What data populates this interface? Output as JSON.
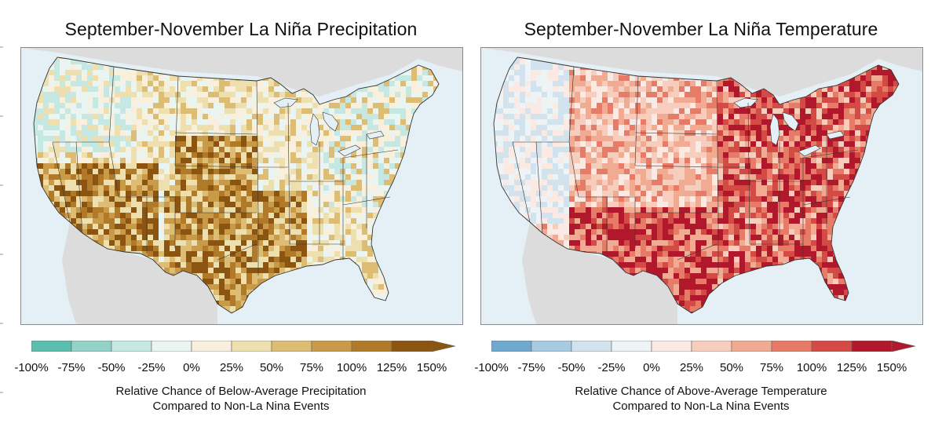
{
  "panels": [
    {
      "title": "September-November La Niña Precipitation",
      "colorbar_colors": [
        "#5cbfae",
        "#92d2c7",
        "#c6e8e2",
        "#eaf5f1",
        "#f8f0dc",
        "#eedfae",
        "#dcbd73",
        "#c99a47",
        "#b07a28",
        "#8b5511"
      ],
      "ticks": [
        "-100%",
        "-75%",
        "-50%",
        "-25%",
        "0%",
        "25%",
        "50%",
        "75%",
        "100%",
        "125%",
        "150%"
      ],
      "caption_line1": "Relative Chance of Below-Average Precipitation",
      "caption_line2": "Compared to Non-La Nina Events"
    },
    {
      "title": "September-November La Niña Temperature",
      "colorbar_colors": [
        "#6fa9cf",
        "#a9cbe2",
        "#d2e3ee",
        "#eef3f6",
        "#fbe9e3",
        "#f7cdbd",
        "#f2ab93",
        "#e67c67",
        "#d44a45",
        "#b2182b"
      ],
      "ticks": [
        "-100%",
        "-75%",
        "-50%",
        "-25%",
        "0%",
        "25%",
        "50%",
        "75%",
        "100%",
        "125%",
        "150%"
      ],
      "caption_line1": "Relative Chance of Above-Average Temperature",
      "caption_line2": "Compared to Non-La Nina Events"
    }
  ],
  "map_colors": {
    "ocean": "#e4f0f6",
    "land_outside": "#dcdcdc",
    "lakes": "#e4f0f6",
    "borders": "#333333"
  }
}
